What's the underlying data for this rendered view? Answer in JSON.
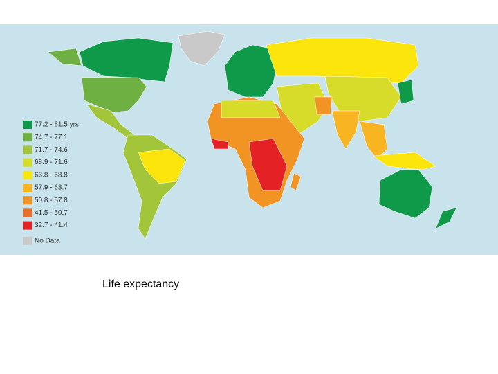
{
  "map": {
    "legend": [
      {
        "label": "77.2 - 81.5 yrs",
        "color": "#0e9a48"
      },
      {
        "label": "74.7 - 77.1",
        "color": "#6fb043"
      },
      {
        "label": "71.7 - 74.6",
        "color": "#a2c53a"
      },
      {
        "label": "68.9 - 71.6",
        "color": "#d7dc2b"
      },
      {
        "label": "63.8 - 68.8",
        "color": "#fbe50b"
      },
      {
        "label": "57.9 - 63.7",
        "color": "#f9b521"
      },
      {
        "label": "50.8 - 57.8",
        "color": "#f29423"
      },
      {
        "label": "41.5 - 50.7",
        "color": "#e8702a"
      },
      {
        "label": "32.7 - 41.4",
        "color": "#e42226"
      },
      {
        "label": "No Data",
        "color": "#c9c9c9"
      }
    ]
  },
  "caption": "Life expectancy"
}
